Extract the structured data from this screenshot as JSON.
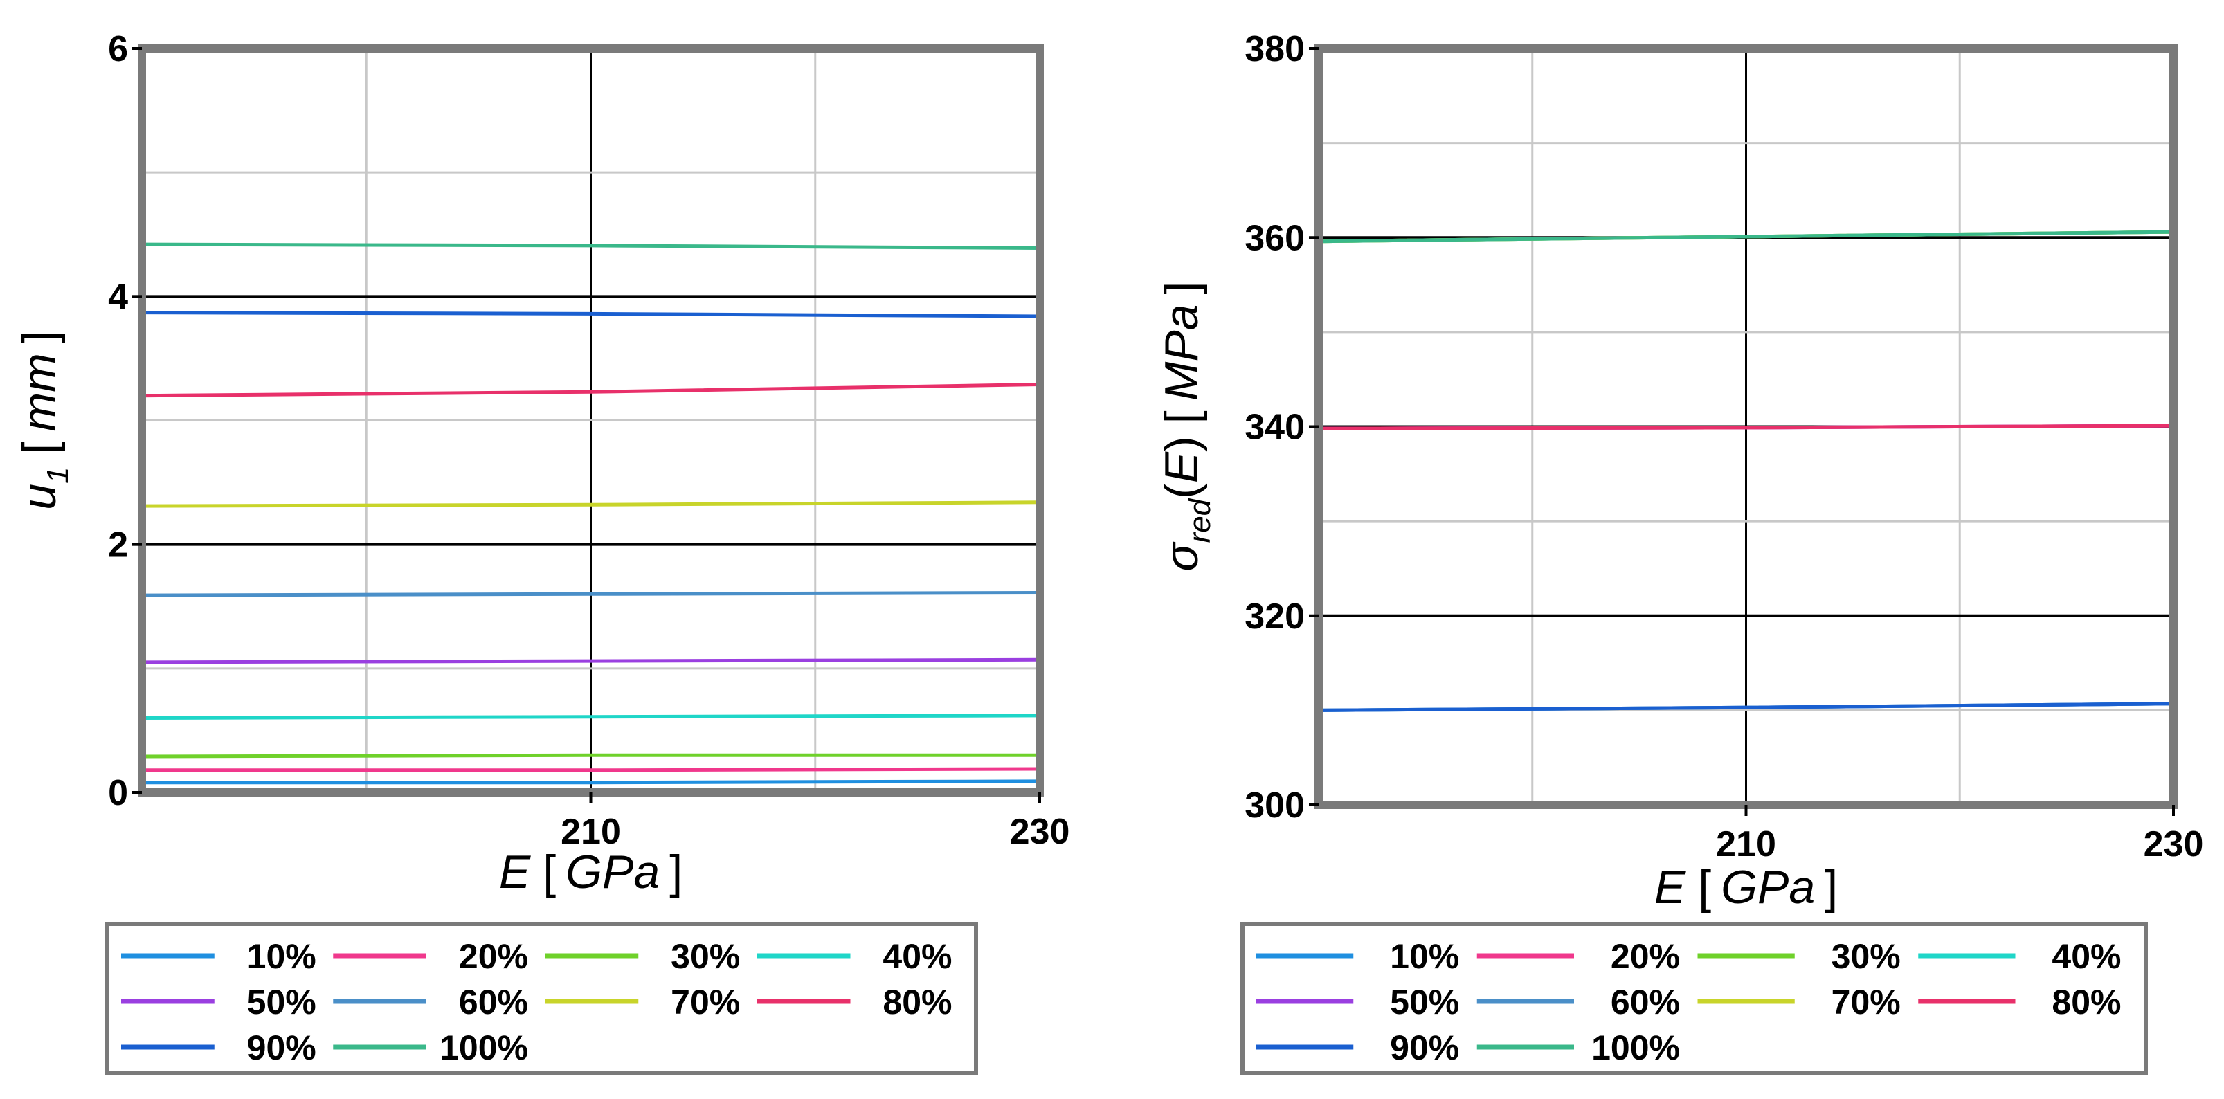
{
  "chart_data": [
    {
      "type": "line",
      "xlabel": "E",
      "xlabel_unit": "GPa",
      "ylabel": "u",
      "ylabel_sub": "1",
      "ylabel_unit": "mm",
      "xlim": [
        190,
        230
      ],
      "ylim": [
        0,
        6
      ],
      "x_ticks": [
        210,
        230
      ],
      "y_ticks": [
        0,
        2,
        4,
        6
      ],
      "grid": true,
      "legend_position": "bottom",
      "series": [
        {
          "name": "10%",
          "color": "#1f8fe0",
          "x": [
            190,
            210,
            230
          ],
          "y": [
            0.08,
            0.08,
            0.09
          ]
        },
        {
          "name": "20%",
          "color": "#f0388c",
          "x": [
            190,
            210,
            230
          ],
          "y": [
            0.18,
            0.18,
            0.19
          ]
        },
        {
          "name": "30%",
          "color": "#6fd12a",
          "x": [
            190,
            210,
            230
          ],
          "y": [
            0.29,
            0.3,
            0.3
          ]
        },
        {
          "name": "40%",
          "color": "#1fd6c8",
          "x": [
            190,
            210,
            230
          ],
          "y": [
            0.6,
            0.61,
            0.62
          ]
        },
        {
          "name": "50%",
          "color": "#9a3fe0",
          "x": [
            190,
            210,
            230
          ],
          "y": [
            1.05,
            1.06,
            1.07
          ]
        },
        {
          "name": "60%",
          "color": "#4a8fc8",
          "x": [
            190,
            210,
            230
          ],
          "y": [
            1.59,
            1.6,
            1.61
          ]
        },
        {
          "name": "70%",
          "color": "#c8d42a",
          "x": [
            190,
            210,
            230
          ],
          "y": [
            2.31,
            2.32,
            2.34
          ]
        },
        {
          "name": "80%",
          "color": "#e8306a",
          "x": [
            190,
            210,
            230
          ],
          "y": [
            3.2,
            3.23,
            3.29
          ]
        },
        {
          "name": "90%",
          "color": "#1a5fd0",
          "x": [
            190,
            210,
            230
          ],
          "y": [
            3.87,
            3.86,
            3.84
          ]
        },
        {
          "name": "100%",
          "color": "#3ab88a",
          "x": [
            190,
            210,
            230
          ],
          "y": [
            4.42,
            4.41,
            4.39
          ]
        }
      ]
    },
    {
      "type": "line",
      "xlabel": "E",
      "xlabel_unit": "GPa",
      "ylabel": "σ",
      "ylabel_sub": "red",
      "ylabel_arg": "E",
      "ylabel_unit": "MPa",
      "xlim": [
        190,
        230
      ],
      "ylim": [
        300,
        380
      ],
      "x_ticks": [
        210,
        230
      ],
      "y_ticks": [
        300,
        320,
        340,
        360,
        380
      ],
      "grid": true,
      "legend_position": "bottom",
      "series": [
        {
          "name": "10%",
          "color": "#1f8fe0",
          "x": [
            190,
            210,
            230
          ],
          "y": [
            310,
            310.3,
            310.7
          ]
        },
        {
          "name": "20%",
          "color": "#f0388c",
          "x": [
            190,
            210,
            230
          ],
          "y": [
            339.8,
            339.9,
            340.1
          ]
        },
        {
          "name": "30%",
          "color": "#6fd12a",
          "x": [
            190,
            210,
            230
          ],
          "y": [
            359.6,
            360.1,
            360.6
          ]
        },
        {
          "name": "40%",
          "color": "#1fd6c8",
          "x": [
            190,
            210,
            230
          ],
          "y": [
            359.6,
            360.1,
            360.6
          ]
        },
        {
          "name": "50%",
          "color": "#9a3fe0",
          "x": [
            190,
            210,
            230
          ],
          "y": [
            339.8,
            339.9,
            340.1
          ]
        },
        {
          "name": "60%",
          "color": "#4a8fc8",
          "x": [
            190,
            210,
            230
          ],
          "y": [
            310,
            310.3,
            310.7
          ]
        },
        {
          "name": "70%",
          "color": "#c8d42a",
          "x": [
            190,
            210,
            230
          ],
          "y": [
            359.6,
            360.1,
            360.6
          ]
        },
        {
          "name": "80%",
          "color": "#e8306a",
          "x": [
            190,
            210,
            230
          ],
          "y": [
            339.8,
            339.9,
            340.1
          ]
        },
        {
          "name": "90%",
          "color": "#1a5fd0",
          "x": [
            190,
            210,
            230
          ],
          "y": [
            310,
            310.3,
            310.7
          ]
        },
        {
          "name": "100%",
          "color": "#3ab88a",
          "x": [
            190,
            210,
            230
          ],
          "y": [
            359.6,
            360.1,
            360.6
          ]
        }
      ]
    }
  ]
}
